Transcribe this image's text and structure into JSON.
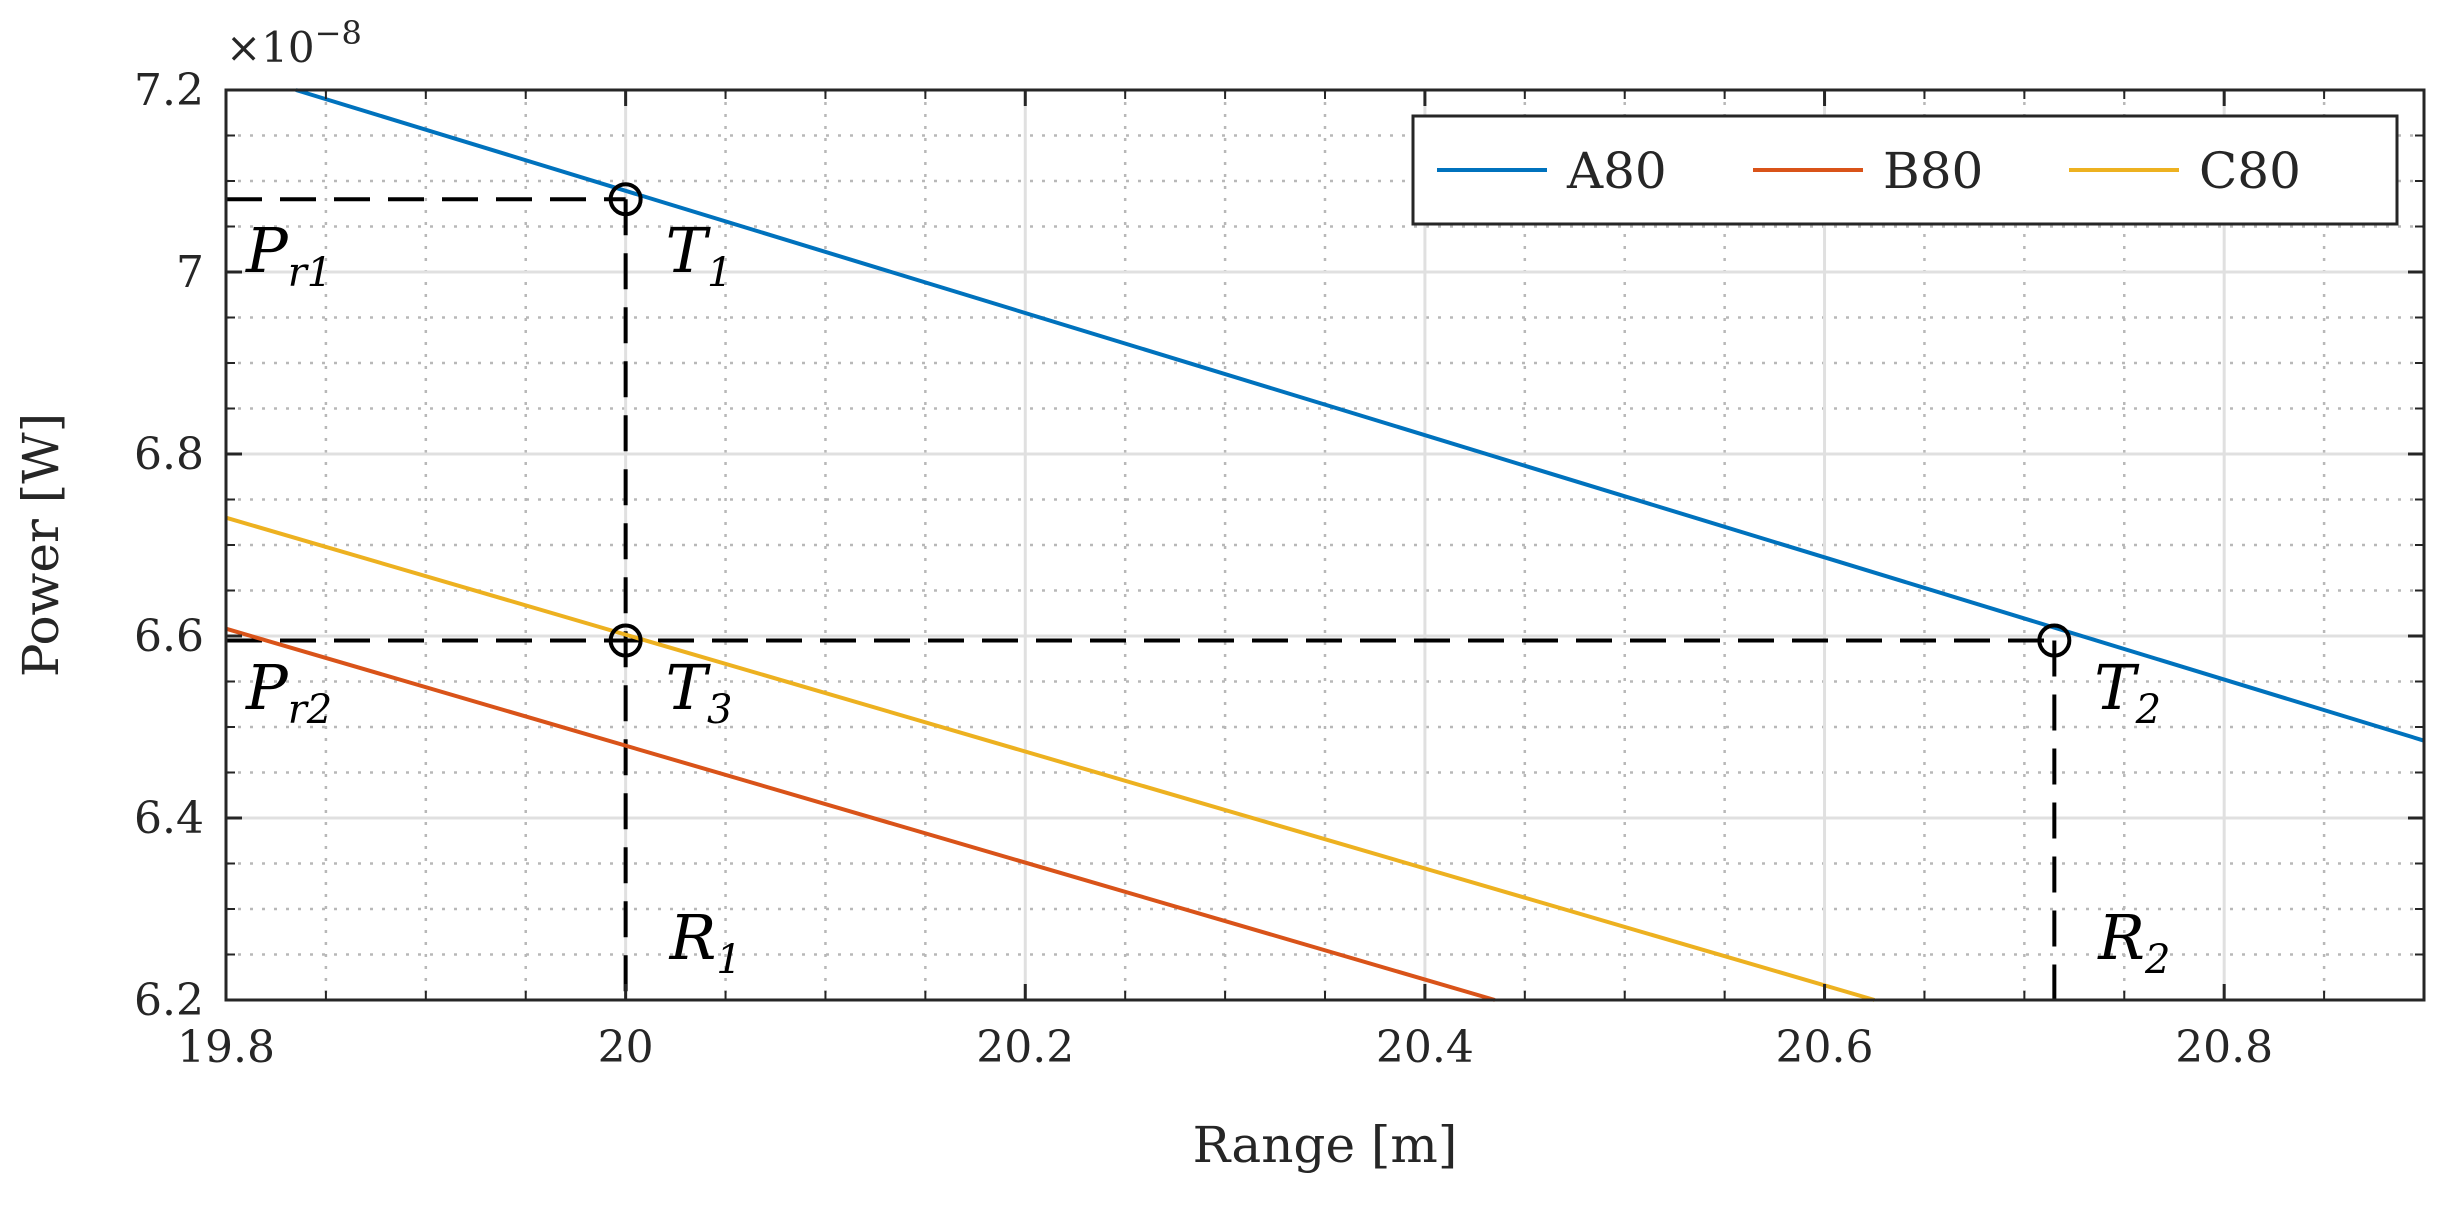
{
  "chart_data": {
    "type": "line",
    "xlabel": "Range [m]",
    "ylabel": "Power [W]",
    "xlim": [
      19.8,
      20.9
    ],
    "ylim": [
      6.2,
      7.2
    ],
    "y_exponent_label": "×10",
    "y_exponent_power": "−8",
    "x_ticks": [
      19.8,
      20,
      20.2,
      20.4,
      20.6,
      20.8
    ],
    "x_tick_labels": [
      "19.8",
      "20",
      "20.2",
      "20.4",
      "20.6",
      "20.8"
    ],
    "y_ticks": [
      6.2,
      6.4,
      6.6,
      6.8,
      7,
      7.2
    ],
    "y_tick_labels": [
      "6.2",
      "6.4",
      "6.6",
      "6.8",
      "7",
      "7.2"
    ],
    "x_minor_step": 0.05,
    "y_minor_step": 0.05,
    "grid": true,
    "legend_position": "top-right",
    "series": [
      {
        "name": "A80",
        "color": "#0072BD",
        "x": [
          19.835,
          20.9
        ],
        "y": [
          7.2,
          6.485
        ]
      },
      {
        "name": "B80",
        "color": "#D95319",
        "x": [
          19.8,
          20.435
        ],
        "y": [
          6.608,
          6.2
        ]
      },
      {
        "name": "C80",
        "color": "#EDB120",
        "x": [
          19.8,
          20.625
        ],
        "y": [
          6.73,
          6.2
        ]
      }
    ],
    "reference_lines": [
      {
        "name": "pr1-line",
        "x": [
          19.8,
          20.0
        ],
        "y": [
          7.08,
          7.08
        ]
      },
      {
        "name": "r1-line",
        "x": [
          20.0,
          20.0
        ],
        "y": [
          7.08,
          6.2
        ]
      },
      {
        "name": "pr2-line",
        "x": [
          19.8,
          20.715
        ],
        "y": [
          6.595,
          6.595
        ]
      },
      {
        "name": "r2-line",
        "x": [
          20.715,
          20.715
        ],
        "y": [
          6.595,
          6.2
        ]
      }
    ],
    "markers": [
      {
        "name": "t1-marker",
        "x": 20.0,
        "y": 7.08
      },
      {
        "name": "t3-marker",
        "x": 20.0,
        "y": 6.595
      },
      {
        "name": "t2-marker",
        "x": 20.715,
        "y": 6.595
      }
    ],
    "annotations": [
      {
        "name": "pr1",
        "main": "P",
        "sub": "r1",
        "x": 19.81,
        "y": 7.0
      },
      {
        "name": "pr2",
        "main": "P",
        "sub": "r2",
        "x": 19.81,
        "y": 6.52
      },
      {
        "name": "t1",
        "main": "T",
        "sub": "1",
        "x": 20.02,
        "y": 7.0
      },
      {
        "name": "t3",
        "main": "T",
        "sub": "3",
        "x": 20.02,
        "y": 6.52
      },
      {
        "name": "t2",
        "main": "T",
        "sub": "2",
        "x": 20.735,
        "y": 6.52
      },
      {
        "name": "r1",
        "main": "R",
        "sub": "1",
        "x": 20.022,
        "y": 6.245
      },
      {
        "name": "r2",
        "main": "R",
        "sub": "2",
        "x": 20.737,
        "y": 6.245
      }
    ]
  }
}
